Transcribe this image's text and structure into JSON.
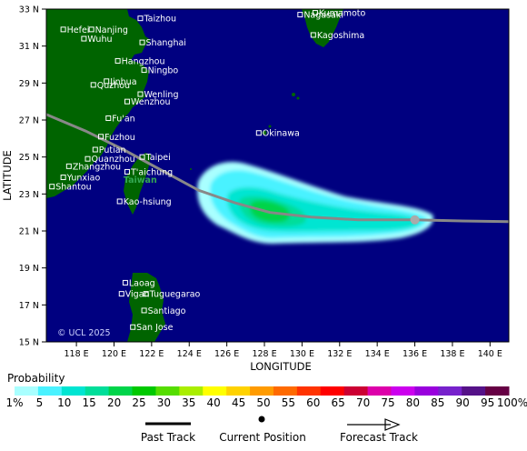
{
  "axes": {
    "x_title": "LONGITUDE",
    "y_title": "LATITUDE",
    "x_ticks": [
      {
        "value": 118,
        "label": "118 E"
      },
      {
        "value": 120,
        "label": "120 E"
      },
      {
        "value": 122,
        "label": "122 E"
      },
      {
        "value": 124,
        "label": "124 E"
      },
      {
        "value": 126,
        "label": "126 E"
      },
      {
        "value": 128,
        "label": "128 E"
      },
      {
        "value": 130,
        "label": "130 E"
      },
      {
        "value": 132,
        "label": "132 E"
      },
      {
        "value": 134,
        "label": "134 E"
      },
      {
        "value": 136,
        "label": "136 E"
      },
      {
        "value": 138,
        "label": "138 E"
      },
      {
        "value": 140,
        "label": "140 E"
      }
    ],
    "y_ticks": [
      {
        "value": 15,
        "label": "15 N"
      },
      {
        "value": 17,
        "label": "17 N"
      },
      {
        "value": 19,
        "label": "19 N"
      },
      {
        "value": 21,
        "label": "21 N"
      },
      {
        "value": 23,
        "label": "23 N"
      },
      {
        "value": 25,
        "label": "25 N"
      },
      {
        "value": 27,
        "label": "27 N"
      },
      {
        "value": 29,
        "label": "29 N"
      },
      {
        "value": 31,
        "label": "31 N"
      },
      {
        "value": 33,
        "label": "33 N"
      }
    ],
    "lon_range": [
      116.4,
      141.0
    ],
    "lat_range": [
      15,
      33
    ]
  },
  "cities": [
    {
      "name": "Taizhou",
      "lon": 121.4,
      "lat": 32.5
    },
    {
      "name": "Hefei",
      "lon": 117.3,
      "lat": 31.9
    },
    {
      "name": "Nanjing",
      "lon": 118.8,
      "lat": 31.9
    },
    {
      "name": "Wuhu",
      "lon": 118.4,
      "lat": 31.4
    },
    {
      "name": "Shanghai",
      "lon": 121.5,
      "lat": 31.2
    },
    {
      "name": "Hangzhou",
      "lon": 120.2,
      "lat": 30.2
    },
    {
      "name": "Ningbo",
      "lon": 121.6,
      "lat": 29.7
    },
    {
      "name": "Jinhua",
      "lon": 119.6,
      "lat": 29.1
    },
    {
      "name": "Quzhou",
      "lon": 118.9,
      "lat": 28.9
    },
    {
      "name": "Wenling",
      "lon": 121.4,
      "lat": 28.4
    },
    {
      "name": "Wenzhou",
      "lon": 120.7,
      "lat": 28.0
    },
    {
      "name": "Fu'an",
      "lon": 119.7,
      "lat": 27.1
    },
    {
      "name": "Fuzhou",
      "lon": 119.3,
      "lat": 26.1
    },
    {
      "name": "Putian",
      "lon": 119.0,
      "lat": 25.4
    },
    {
      "name": "Quanzhou",
      "lon": 118.6,
      "lat": 24.9
    },
    {
      "name": "Taipei",
      "lon": 121.5,
      "lat": 25.0
    },
    {
      "name": "Zhangzhou",
      "lon": 117.6,
      "lat": 24.5
    },
    {
      "name": "T'aichung",
      "lon": 120.7,
      "lat": 24.2
    },
    {
      "name": "Yunxiao",
      "lon": 117.3,
      "lat": 23.9
    },
    {
      "name": "Shantou",
      "lon": 116.7,
      "lat": 23.4
    },
    {
      "name": "Kao-hsiung",
      "lon": 120.3,
      "lat": 22.6
    },
    {
      "name": "Kumamoto",
      "lon": 130.7,
      "lat": 32.8
    },
    {
      "name": "Nagasaki",
      "lon": 129.9,
      "lat": 32.7
    },
    {
      "name": "Kagoshima",
      "lon": 130.6,
      "lat": 31.6
    },
    {
      "name": "Okinawa",
      "lon": 127.7,
      "lat": 26.3
    },
    {
      "name": "Laoag",
      "lon": 120.6,
      "lat": 18.2
    },
    {
      "name": "Tuguegarao",
      "lon": 121.7,
      "lat": 17.6
    },
    {
      "name": "Vigan",
      "lon": 120.4,
      "lat": 17.6
    },
    {
      "name": "Santiago",
      "lon": 121.6,
      "lat": 16.7
    },
    {
      "name": "San Jose",
      "lon": 121.0,
      "lat": 15.8
    }
  ],
  "region_label": {
    "name": "Taiwan",
    "lon": 120.5,
    "lat": 23.6
  },
  "copyright": "© UCL 2025",
  "track": {
    "past": [
      [
        116.4,
        27.3
      ],
      [
        118.5,
        26.4
      ],
      [
        120.5,
        25.4
      ],
      [
        122.5,
        24.3
      ],
      [
        124.5,
        23.2
      ],
      [
        126.5,
        22.5
      ],
      [
        128.3,
        22.0
      ],
      [
        130.5,
        21.75
      ],
      [
        133,
        21.6
      ],
      [
        136,
        21.6
      ],
      [
        138,
        21.55
      ],
      [
        141,
        21.5
      ]
    ],
    "current": {
      "lon": 136.0,
      "lat": 21.6
    },
    "forecast": []
  },
  "probability": {
    "title": "Probability",
    "labels": [
      "1%",
      "5",
      "10",
      "15",
      "20",
      "25",
      "30",
      "35",
      "40",
      "45",
      "50",
      "55",
      "60",
      "65",
      "70",
      "75",
      "80",
      "85",
      "90",
      "95",
      "100%"
    ],
    "colors": [
      "#a9ffff",
      "#4af2ff",
      "#00e5d2",
      "#00de9a",
      "#00d44a",
      "#00c900",
      "#55dd00",
      "#aaee00",
      "#ffff00",
      "#ffd200",
      "#ff9b00",
      "#ff6a00",
      "#ff3300",
      "#ff0000",
      "#cc0033",
      "#dd00aa",
      "#cc00ee",
      "#9900dd",
      "#7722cc",
      "#551188",
      "#660044"
    ]
  },
  "legend": {
    "past_track": "Past Track",
    "current_position": "Current Position",
    "forecast_track": "Forecast Track"
  },
  "colors": {
    "ocean": "#000080",
    "land": "#006400",
    "track": "#888888",
    "current_marker": "#aaaaaa"
  }
}
